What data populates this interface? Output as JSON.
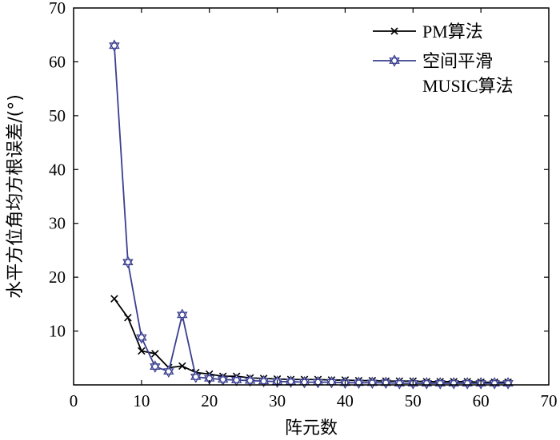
{
  "chart_data": {
    "type": "line",
    "title": "",
    "xlabel": "阵元数",
    "ylabel": "水平方位角均方根误差/(°)",
    "xlim": [
      0,
      70
    ],
    "ylim": [
      0,
      70
    ],
    "xticks": [
      0,
      10,
      20,
      30,
      40,
      50,
      60,
      70
    ],
    "yticks": [
      10,
      20,
      30,
      40,
      50,
      60,
      70
    ],
    "grid": false,
    "legend_position": "top-right",
    "legend": {
      "pm_label": "PM算法",
      "ss_label_line1": "空间平滑",
      "ss_label_line2": "MUSIC算法"
    },
    "x": [
      6,
      8,
      10,
      12,
      14,
      16,
      18,
      20,
      22,
      24,
      26,
      28,
      30,
      32,
      34,
      36,
      38,
      40,
      42,
      44,
      46,
      48,
      50,
      52,
      54,
      56,
      58,
      60,
      62,
      64
    ],
    "series": [
      {
        "name": "PM算法",
        "color": "#000000",
        "marker": "x",
        "values": [
          16,
          12.5,
          6.3,
          5.8,
          3.2,
          3.5,
          2.3,
          2.0,
          1.6,
          1.6,
          1.3,
          1.2,
          1.1,
          1.0,
          1.0,
          1.0,
          0.9,
          0.9,
          0.8,
          0.8,
          0.7,
          0.7,
          0.7,
          0.6,
          0.6,
          0.6,
          0.6,
          0.5,
          0.5,
          0.5
        ]
      },
      {
        "name": "空间平滑MUSIC算法",
        "color": "#3a3f8f",
        "marker": "hexagram",
        "values": [
          63,
          22.8,
          8.8,
          3.4,
          2.5,
          13,
          1.5,
          1.2,
          1.0,
          0.9,
          0.8,
          0.7,
          0.6,
          0.6,
          0.5,
          0.5,
          0.5,
          0.4,
          0.4,
          0.4,
          0.4,
          0.3,
          0.3,
          0.3,
          0.3,
          0.3,
          0.3,
          0.3,
          0.3,
          0.3
        ]
      }
    ]
  }
}
